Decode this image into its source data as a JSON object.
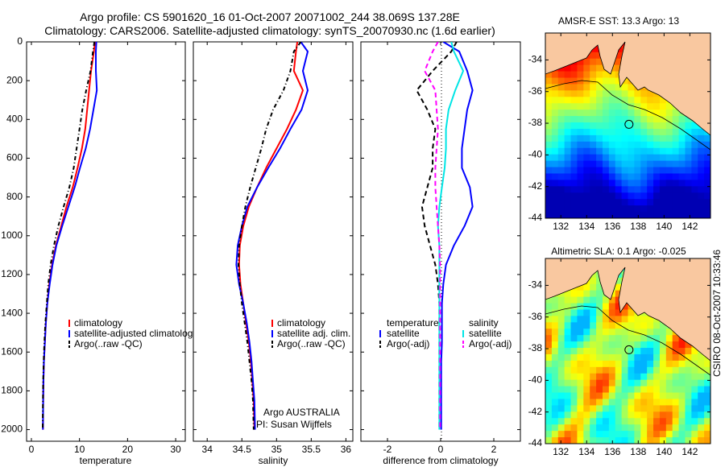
{
  "header": {
    "line1": "Argo profile: CS 5901620_16 01-Oct-2007 20071002_244 38.069S 137.28E",
    "line2": "Climatology: CARS2006. Satellite-adjusted climatology: synTS_20070930.nc (1.6d earlier)"
  },
  "side_stamp": "CSIRO 08-Oct-2007 10:33:46",
  "colors": {
    "climatology": "#ff0000",
    "satellite": "#0000ff",
    "argo": "#000000",
    "satellite_sal": "#00e5e5",
    "argo_sal": "#ff00ff",
    "land": "#f9c8a0"
  },
  "panels": {
    "temperature": {
      "legend": [
        "climatology",
        "satellite-adjusted climatology",
        "Argo(..raw -QC)"
      ],
      "annotation": []
    },
    "salinity": {
      "legend": [
        "climatology",
        "satellite adj. clim.",
        "Argo(..raw -QC)"
      ],
      "annotation": [
        "Argo AUSTRALIA",
        "PI: Susan Wijffels"
      ]
    },
    "difference": {
      "legend_titles": [
        "temperature",
        "salinity"
      ],
      "legend_left": [
        "satellite",
        "Argo(-adj)"
      ],
      "legend_right": [
        "satellite",
        "Argo(-adj)"
      ]
    }
  },
  "maps": {
    "sst": {
      "title": "AMSR-E SST: 13.3 Argo: 13"
    },
    "sla": {
      "title": "Altimetric SLA: 0.1 Argo: -0.025"
    }
  },
  "chart_data": [
    {
      "type": "line",
      "name": "temperature",
      "title": "",
      "xlabel": "temperature",
      "ylabel": "",
      "xlim": [
        -1,
        32
      ],
      "ylim": [
        2060,
        0
      ],
      "y_reversed": true,
      "xticks": [
        0,
        10,
        20,
        30
      ],
      "yticks": [
        0,
        200,
        400,
        600,
        800,
        1000,
        1200,
        1400,
        1600,
        1800,
        2000
      ],
      "series": [
        {
          "name": "climatology",
          "color": "#ff0000",
          "dash": "",
          "x": [
            13.2,
            13.0,
            12.4,
            12.0,
            11.6,
            11.2,
            10.5,
            9.6,
            8.6,
            7.3,
            6.2,
            5.1,
            4.3,
            3.7,
            3.3,
            3.0,
            2.8,
            2.6,
            2.5,
            2.45,
            2.4
          ],
          "y": [
            0,
            50,
            150,
            250,
            350,
            450,
            550,
            650,
            750,
            850,
            950,
            1050,
            1150,
            1250,
            1350,
            1450,
            1550,
            1650,
            1750,
            1850,
            2000
          ]
        },
        {
          "name": "satellite-adjusted climatology",
          "color": "#0000ff",
          "dash": "",
          "x": [
            13.5,
            13.4,
            13.4,
            13.6,
            12.9,
            12.2,
            11.3,
            10.1,
            9.0,
            7.7,
            6.4,
            5.2,
            4.4,
            3.8,
            3.3,
            3.0,
            2.8,
            2.6,
            2.5,
            2.45,
            2.4
          ],
          "y": [
            0,
            50,
            150,
            250,
            350,
            450,
            550,
            650,
            750,
            850,
            950,
            1050,
            1150,
            1250,
            1350,
            1450,
            1550,
            1650,
            1750,
            1850,
            2000
          ]
        },
        {
          "name": "Argo(..raw -QC)",
          "color": "#000000",
          "dash": "5,3,1,3",
          "x": [
            13.1,
            12.8,
            12.3,
            11.4,
            10.6,
            10.0,
            9.4,
            8.8,
            7.9,
            6.7,
            5.6,
            4.7,
            4.0,
            3.5,
            3.2,
            2.9,
            2.7,
            2.55,
            2.45,
            2.4,
            2.35
          ],
          "y": [
            0,
            50,
            150,
            250,
            350,
            450,
            550,
            650,
            750,
            850,
            950,
            1050,
            1150,
            1250,
            1350,
            1450,
            1550,
            1650,
            1750,
            1850,
            2000
          ]
        }
      ]
    },
    {
      "type": "line",
      "name": "salinity",
      "title": "",
      "xlabel": "salinity",
      "ylabel": "",
      "xlim": [
        33.8,
        36.1
      ],
      "ylim": [
        2060,
        0
      ],
      "y_reversed": true,
      "xticks": [
        34,
        34.5,
        35,
        35.5,
        36
      ],
      "yticks": [],
      "series": [
        {
          "name": "climatology",
          "color": "#ff0000",
          "dash": "",
          "x": [
            35.3,
            35.28,
            35.25,
            35.38,
            35.28,
            35.15,
            35.0,
            34.85,
            34.72,
            34.6,
            34.52,
            34.47,
            34.46,
            34.48,
            34.52,
            34.56,
            34.6,
            34.63,
            34.65,
            34.67,
            34.68
          ],
          "y": [
            0,
            50,
            150,
            250,
            350,
            450,
            550,
            650,
            750,
            850,
            950,
            1050,
            1150,
            1250,
            1350,
            1450,
            1550,
            1650,
            1750,
            1850,
            2000
          ]
        },
        {
          "name": "satellite adj. clim.",
          "color": "#0000ff",
          "dash": "",
          "x": [
            35.35,
            35.45,
            35.38,
            35.45,
            35.36,
            35.2,
            35.05,
            34.88,
            34.72,
            34.58,
            34.5,
            34.44,
            34.42,
            34.46,
            34.52,
            34.57,
            34.61,
            34.64,
            34.66,
            34.68,
            34.69
          ],
          "y": [
            0,
            50,
            150,
            250,
            350,
            450,
            550,
            650,
            750,
            850,
            950,
            1050,
            1150,
            1250,
            1350,
            1450,
            1550,
            1650,
            1750,
            1850,
            2000
          ]
        },
        {
          "name": "Argo(..raw -QC)",
          "color": "#000000",
          "dash": "5,3,1,3",
          "x": [
            35.35,
            35.25,
            35.2,
            35.1,
            34.95,
            34.85,
            34.78,
            34.7,
            34.62,
            34.55,
            34.5,
            34.46,
            34.45,
            34.47,
            34.5,
            34.54,
            34.58,
            34.61,
            34.64,
            34.66,
            34.67
          ],
          "y": [
            0,
            50,
            150,
            250,
            350,
            450,
            550,
            650,
            750,
            850,
            950,
            1050,
            1150,
            1250,
            1350,
            1450,
            1550,
            1650,
            1750,
            1850,
            2000
          ]
        }
      ]
    },
    {
      "type": "line",
      "name": "difference",
      "title": "",
      "xlabel": "difference from climatology",
      "ylabel": "",
      "xlim": [
        -3,
        3
      ],
      "ylim": [
        2060,
        0
      ],
      "y_reversed": true,
      "xticks": [
        -2,
        0,
        2
      ],
      "yticks": [],
      "series": [
        {
          "name": "temperature satellite",
          "color": "#0000ff",
          "dash": "",
          "x": [
            0.1,
            0.7,
            1.0,
            1.2,
            1.0,
            0.9,
            0.8,
            0.8,
            1.1,
            1.2,
            0.9,
            0.5,
            0.2,
            0.1,
            0.05,
            0.05,
            0.05,
            0.02,
            0.02,
            0.02,
            0.02
          ],
          "y": [
            0,
            50,
            150,
            250,
            350,
            450,
            550,
            650,
            750,
            850,
            950,
            1050,
            1150,
            1250,
            1350,
            1450,
            1550,
            1650,
            1750,
            1850,
            2000
          ]
        },
        {
          "name": "temperature Argo(-adj)",
          "color": "#000000",
          "dash": "6,4",
          "x": [
            0.6,
            0.4,
            -0.3,
            -0.9,
            -0.5,
            -0.2,
            -0.3,
            -0.3,
            -0.5,
            -0.7,
            -0.6,
            -0.4,
            -0.2,
            -0.1,
            -0.05,
            -0.05,
            -0.05,
            -0.05,
            -0.05,
            -0.05,
            -0.05
          ],
          "y": [
            0,
            50,
            150,
            250,
            350,
            450,
            550,
            650,
            750,
            850,
            950,
            1050,
            1150,
            1250,
            1350,
            1450,
            1550,
            1650,
            1750,
            1850,
            2000
          ]
        },
        {
          "name": "salinity satellite",
          "color": "#00e5e5",
          "dash": "",
          "x": [
            0.4,
            0.5,
            0.85,
            0.55,
            0.3,
            0.2,
            0.2,
            0.15,
            0.05,
            -0.05,
            -0.1,
            -0.05,
            -0.05,
            -0.05,
            -0.05,
            -0.05,
            -0.05,
            -0.05,
            -0.05,
            -0.05,
            -0.05
          ],
          "y": [
            0,
            50,
            150,
            250,
            350,
            450,
            550,
            650,
            750,
            850,
            950,
            1050,
            1150,
            1250,
            1350,
            1450,
            1550,
            1650,
            1750,
            1850,
            2000
          ]
        },
        {
          "name": "salinity Argo(-adj)",
          "color": "#ff00ff",
          "dash": "6,4",
          "x": [
            -0.1,
            -0.3,
            -0.6,
            -0.2,
            -0.15,
            -0.1,
            -0.15,
            -0.2,
            -0.2,
            -0.15,
            -0.1,
            -0.05,
            -0.02,
            -0.02,
            -0.02,
            -0.02,
            -0.02,
            -0.02,
            -0.02,
            -0.02,
            -0.02
          ],
          "y": [
            0,
            50,
            150,
            250,
            350,
            450,
            550,
            650,
            750,
            850,
            950,
            1050,
            1150,
            1250,
            1350,
            1450,
            1550,
            1650,
            1750,
            1850,
            2000
          ]
        }
      ]
    },
    {
      "type": "heatmap",
      "name": "sst-map",
      "title": "AMSR-E SST: 13.3 Argo: 13",
      "xlim": [
        130.8,
        143.6
      ],
      "ylim": [
        -44,
        -32.3
      ],
      "xticks": [
        132,
        134,
        136,
        138,
        140,
        142
      ],
      "yticks": [
        -34,
        -36,
        -38,
        -40,
        -42,
        -44
      ],
      "tick_labels_x": [
        "132",
        "134",
        "136",
        "138",
        "140",
        "142"
      ],
      "tick_labels_y": [
        "-34",
        "-36",
        "-38",
        "-40",
        "-42",
        "-44"
      ],
      "argo_position": [
        137.28,
        -38.07
      ],
      "colormap": "jet"
    },
    {
      "type": "heatmap",
      "name": "sla-map",
      "title": "Altimetric SLA: 0.1 Argo: -0.025",
      "xlim": [
        130.8,
        143.6
      ],
      "ylim": [
        -44,
        -32.3
      ],
      "xticks": [
        132,
        134,
        136,
        138,
        140,
        142
      ],
      "yticks": [
        -34,
        -36,
        -38,
        -40,
        -42,
        -44
      ],
      "tick_labels_x": [
        "132",
        "134",
        "136",
        "138",
        "140",
        "142"
      ],
      "tick_labels_y": [
        "-34",
        "-36",
        "-38",
        "-40",
        "-42",
        "-44"
      ],
      "argo_position": [
        137.28,
        -38.07
      ],
      "colormap": "jet"
    }
  ]
}
